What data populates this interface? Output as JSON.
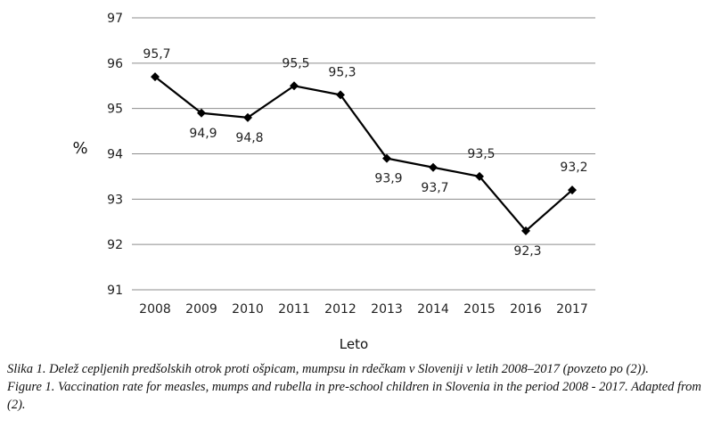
{
  "chart_data": {
    "type": "line",
    "categories": [
      "2008",
      "2009",
      "2010",
      "2011",
      "2012",
      "2013",
      "2014",
      "2015",
      "2016",
      "2017"
    ],
    "values": [
      95.7,
      94.9,
      94.8,
      95.5,
      95.3,
      93.9,
      93.7,
      93.5,
      92.3,
      93.2
    ],
    "data_labels": [
      "95,7",
      "94,9",
      "94,8",
      "95,5",
      "95,3",
      "93,9",
      "93,7",
      "93,5",
      "92,3",
      "93,2"
    ],
    "ylabel": "%",
    "xlabel": "Leto",
    "ylim": [
      91,
      97
    ],
    "yticks": [
      "91",
      "92",
      "93",
      "94",
      "95",
      "96",
      "97"
    ],
    "grid": true,
    "marker": "diamond",
    "line_color": "#000000"
  },
  "caption": {
    "slovenian": "Slika 1. Delež cepljenih predšolskih otrok proti ošpicam, mumpsu in rdečkam v Sloveniji v letih 2008–2017 (povzeto po (2)).",
    "english": "Figure 1. Vaccination rate for measles, mumps and rubella in pre-school children in Slovenia in the period 2008 - 2017. Adapted from (2)."
  }
}
